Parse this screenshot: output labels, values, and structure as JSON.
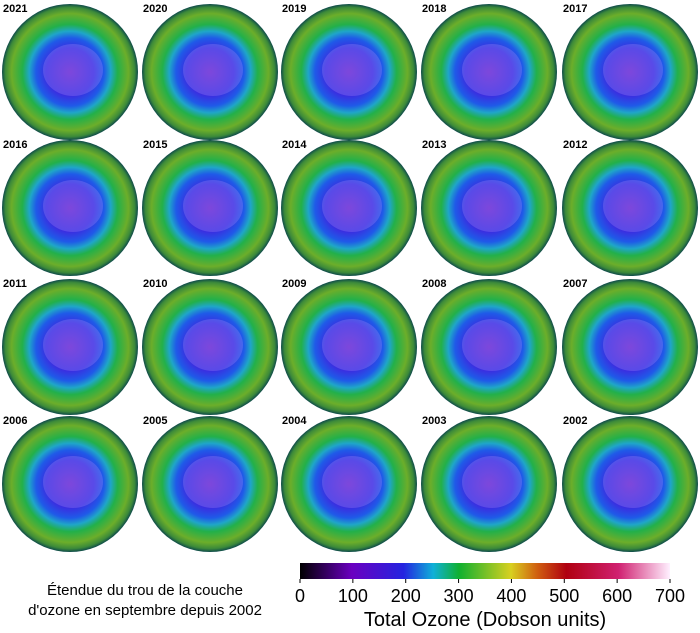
{
  "panels": [
    {
      "year": "2021"
    },
    {
      "year": "2020"
    },
    {
      "year": "2019"
    },
    {
      "year": "2018"
    },
    {
      "year": "2017"
    },
    {
      "year": "2016"
    },
    {
      "year": "2015"
    },
    {
      "year": "2014"
    },
    {
      "year": "2013"
    },
    {
      "year": "2012"
    },
    {
      "year": "2011"
    },
    {
      "year": "2010"
    },
    {
      "year": "2009"
    },
    {
      "year": "2008"
    },
    {
      "year": "2007"
    },
    {
      "year": "2006"
    },
    {
      "year": "2005"
    },
    {
      "year": "2004"
    },
    {
      "year": "2003"
    },
    {
      "year": "2002"
    }
  ],
  "caption": [
    "Étendue du trou de la couche",
    "d'ozone en septembre depuis 2002"
  ],
  "colorbar": {
    "label": "Total Ozone (Dobson units)",
    "lim": [
      0,
      700
    ],
    "ticks": [
      0,
      100,
      200,
      300,
      400,
      500,
      600,
      700
    ]
  }
}
